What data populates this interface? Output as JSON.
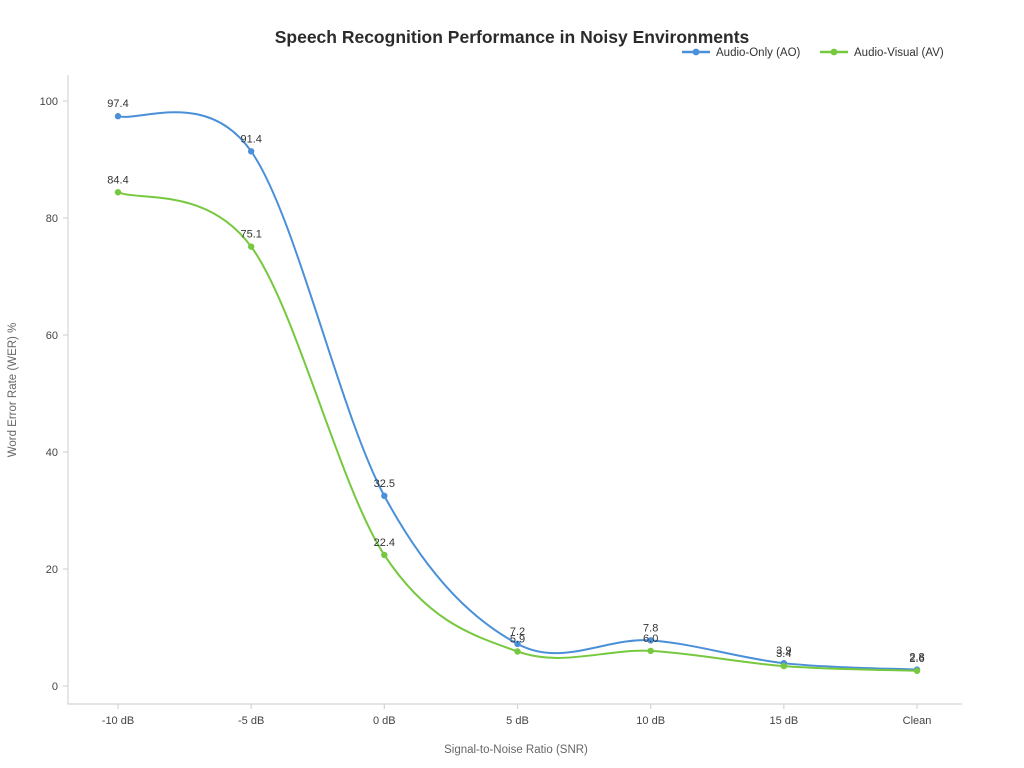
{
  "title": "Speech Recognition Performance in Noisy Environments",
  "chart_data": {
    "type": "line",
    "categories": [
      "-10 dB",
      "-5 dB",
      "0 dB",
      "5 dB",
      "10 dB",
      "15 dB",
      "Clean"
    ],
    "series": [
      {
        "name": "Audio-Only (AO)",
        "color": "#4a90d9",
        "values": [
          97.4,
          91.4,
          32.5,
          7.2,
          7.8,
          3.9,
          2.8
        ]
      },
      {
        "name": "Audio-Visual (AV)",
        "color": "#76c83e",
        "values": [
          84.4,
          75.1,
          22.4,
          5.9,
          6.0,
          3.4,
          2.6
        ]
      }
    ],
    "xlabel": "Signal-to-Noise Ratio (SNR)",
    "ylabel": "Word Error Rate (WER) %",
    "ylim": [
      0,
      100
    ],
    "yticks": [
      0,
      20,
      40,
      60,
      80,
      100
    ],
    "legend_position": "top-right",
    "grid": false,
    "axis_color": "#d4d4d4",
    "tick_label_color": "#444444",
    "data_label_color": "#333333",
    "title_color": "#2b2b2b",
    "axis_title_color": "#666666"
  }
}
